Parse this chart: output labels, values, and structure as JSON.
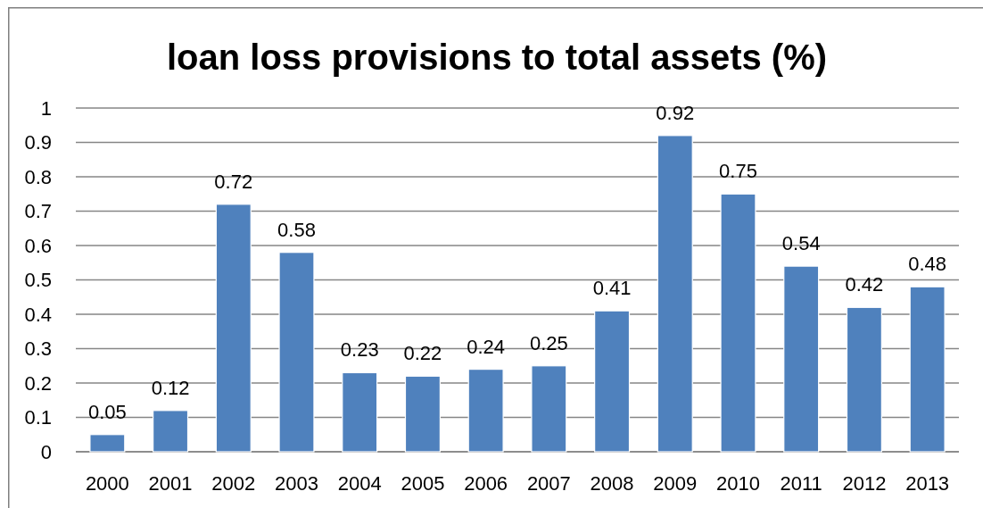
{
  "chart_data": {
    "type": "bar",
    "title": "loan loss provisions to total assets (%)",
    "categories": [
      "2000",
      "2001",
      "2002",
      "2003",
      "2004",
      "2005",
      "2006",
      "2007",
      "2008",
      "2009",
      "2010",
      "2011",
      "2012",
      "2013"
    ],
    "values": [
      0.05,
      0.12,
      0.72,
      0.58,
      0.23,
      0.22,
      0.24,
      0.25,
      0.41,
      0.92,
      0.75,
      0.54,
      0.42,
      0.48
    ],
    "color": "#4f81bd",
    "ylim": [
      0,
      1
    ],
    "yticks": [
      0,
      0.1,
      0.2,
      0.3,
      0.4,
      0.5,
      0.6,
      0.7,
      0.8,
      0.9,
      1
    ],
    "grid": "y",
    "data_labels": true
  }
}
